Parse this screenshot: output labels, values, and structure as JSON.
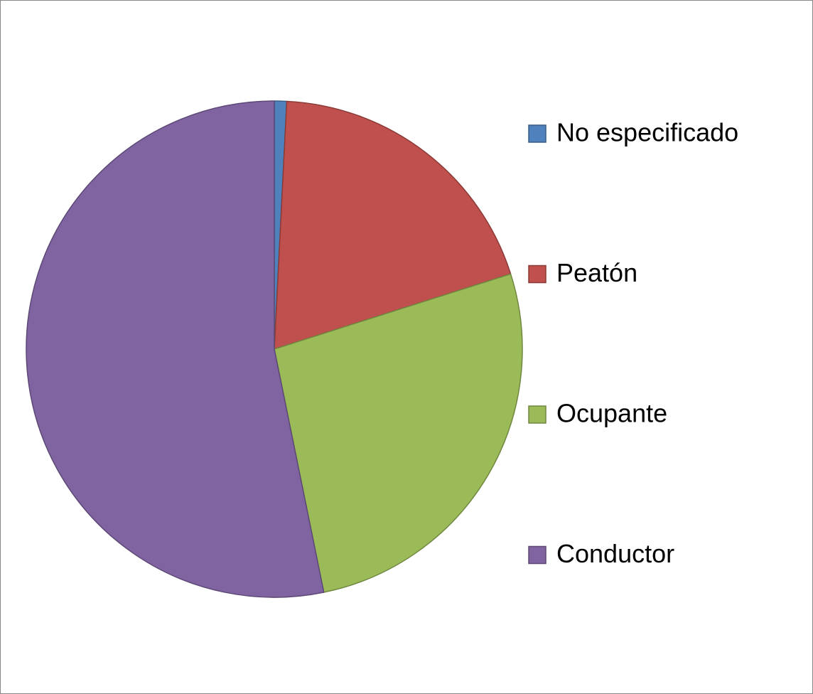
{
  "chart_data": {
    "type": "pie",
    "categories": [
      "No especificado",
      "Peatón",
      "Ocupante",
      "Conductor"
    ],
    "values": [
      0.8,
      19.3,
      26.7,
      53.2
    ],
    "colors": [
      "#4f81bd",
      "#c0504d",
      "#9bbb59",
      "#8064a2"
    ],
    "legend": "right"
  }
}
